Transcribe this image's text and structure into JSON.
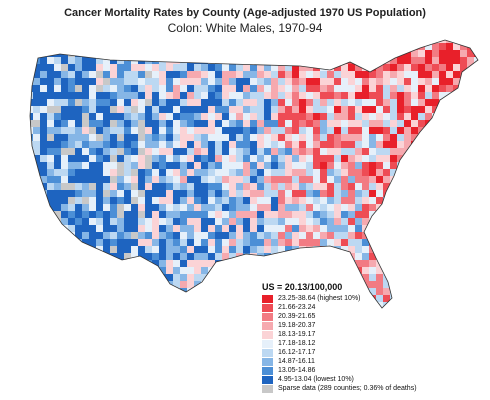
{
  "title": {
    "line1": "Cancer Mortality Rates by County (Age-adjusted 1970 US Population)",
    "line2": "Colon:  White Males, 1970-94"
  },
  "legend": {
    "summary": "US = 20.13/100,000",
    "classes": [
      {
        "label": "23.25-38.64 (highest 10%)",
        "color": "#e8202a"
      },
      {
        "label": "21.66-23.24",
        "color": "#ee4c55"
      },
      {
        "label": "20.39-21.65",
        "color": "#f27b83"
      },
      {
        "label": "19.18-20.37",
        "color": "#f6a9af"
      },
      {
        "label": "18.13-19.17",
        "color": "#fbd3d6"
      },
      {
        "label": "17.18-18.12",
        "color": "#e6f0fa"
      },
      {
        "label": "16.12-17.17",
        "color": "#bcd8f2"
      },
      {
        "label": "14.87-16.11",
        "color": "#86b6e6"
      },
      {
        "label": "13.05-14.86",
        "color": "#4c8fd6"
      },
      {
        "label": "4.95-13.04 (lowest 10%)",
        "color": "#1e64c0"
      },
      {
        "label": "Sparse data (289 counties; 0.36% of deaths)",
        "color": "#c8c8c8"
      }
    ]
  }
}
